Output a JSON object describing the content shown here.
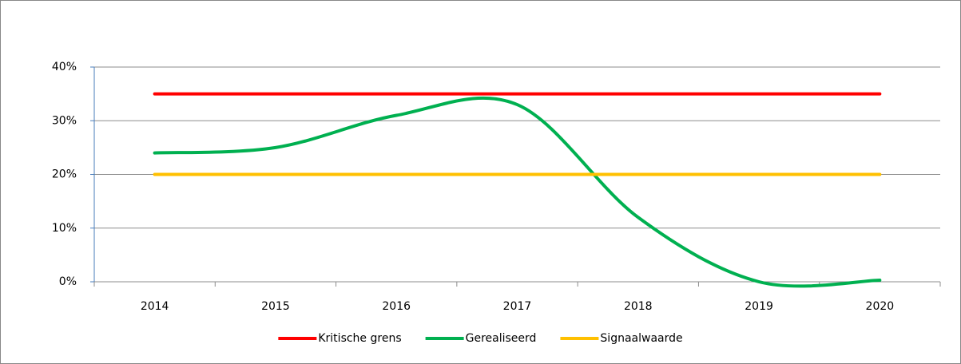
{
  "chart_data": {
    "type": "line",
    "categories": [
      "2014",
      "2015",
      "2016",
      "2017",
      "2018",
      "2019",
      "2020"
    ],
    "series": [
      {
        "name": "Kritische grens",
        "color": "#ff0000",
        "values": [
          35,
          35,
          35,
          35,
          35,
          35,
          35
        ]
      },
      {
        "name": "Gerealiseerd",
        "color": "#00b050",
        "values": [
          24,
          25,
          31,
          33,
          12,
          0,
          0.3
        ]
      },
      {
        "name": "Signaalwaarde",
        "color": "#ffc000",
        "values": [
          20,
          20,
          20,
          20,
          20,
          20,
          20
        ]
      }
    ],
    "ylim": [
      0,
      40
    ],
    "yticks": [
      {
        "value": 0,
        "label": "0%"
      },
      {
        "value": 10,
        "label": "10%"
      },
      {
        "value": 20,
        "label": "20%"
      },
      {
        "value": 30,
        "label": "30%"
      },
      {
        "value": 40,
        "label": "40%"
      }
    ],
    "grid": true,
    "smooth": true,
    "legend": "bottom"
  }
}
